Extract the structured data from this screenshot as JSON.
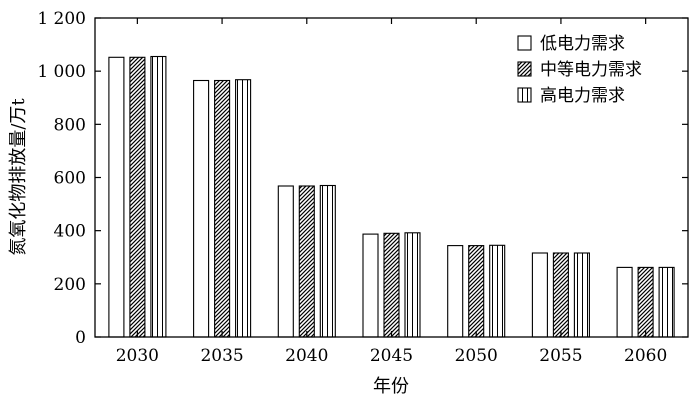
{
  "chart_data": {
    "type": "bar",
    "categories": [
      "2030",
      "2035",
      "2040",
      "2045",
      "2050",
      "2055",
      "2060"
    ],
    "series": [
      {
        "name": "低电力需求",
        "pattern": "plain",
        "values": [
          1052,
          965,
          568,
          387,
          344,
          316,
          262
        ]
      },
      {
        "name": "中等电力需求",
        "pattern": "diagonal-hatch",
        "values": [
          1052,
          965,
          568,
          390,
          344,
          316,
          262
        ]
      },
      {
        "name": "高电力需求",
        "pattern": "vertical-stripes",
        "values": [
          1055,
          968,
          570,
          392,
          345,
          316,
          262
        ]
      }
    ],
    "xlabel": "年份",
    "ylabel": "氮氧化物排放量/万t",
    "ylim": [
      0,
      1200
    ],
    "yticks": [
      0,
      200,
      400,
      600,
      800,
      1000,
      1200
    ],
    "ytick_labels": [
      "0",
      "200",
      "400",
      "600",
      "800",
      "1 000",
      "1 200"
    ],
    "grid": false,
    "legend_position": "top-right"
  }
}
